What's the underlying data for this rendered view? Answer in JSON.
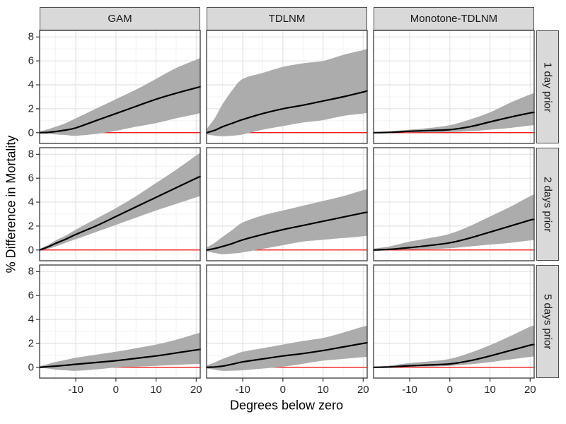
{
  "chart_data": {
    "type": "line",
    "description": "Faceted line chart with confidence ribbons: % difference in mortality vs degrees below zero, by model (columns) and lag (rows)",
    "xlabel": "Degrees below zero",
    "ylabel": "% Difference in Mortality",
    "col_facets": [
      "GAM",
      "TDLNM",
      "Monotone-TDLNM"
    ],
    "row_facets": [
      "1 day prior",
      "2 days prior",
      "5 days prior"
    ],
    "x_ticks": [
      -10,
      0,
      10,
      20
    ],
    "y_ticks": [
      0,
      2,
      4,
      6,
      8
    ],
    "x_minor_ticks": [
      -15,
      -5,
      5,
      15
    ],
    "y_minor_ticks": [
      1,
      3,
      5,
      7
    ],
    "x_range": [
      -19,
      21
    ],
    "y_range": [
      -0.9,
      8.55
    ],
    "grid": true,
    "legend": "none",
    "reference_line_y": 0,
    "x": [
      -19,
      -17,
      -15,
      -12.5,
      -10,
      -5,
      0,
      5,
      10,
      15,
      20,
      21
    ],
    "panels": [
      {
        "row": "1 day prior",
        "col": "GAM",
        "mean": [
          0,
          0.03,
          0.1,
          0.22,
          0.4,
          1.0,
          1.6,
          2.2,
          2.8,
          3.3,
          3.75,
          3.85
        ],
        "lower": [
          -0.05,
          -0.1,
          -0.15,
          -0.2,
          -0.25,
          -0.1,
          0.15,
          0.5,
          0.8,
          1.2,
          1.55,
          1.65
        ],
        "upper": [
          0.1,
          0.28,
          0.5,
          0.8,
          1.2,
          2.0,
          2.8,
          3.6,
          4.5,
          5.4,
          6.1,
          6.25
        ]
      },
      {
        "row": "1 day prior",
        "col": "TDLNM",
        "mean": [
          0,
          0.2,
          0.5,
          0.8,
          1.1,
          1.6,
          2.0,
          2.3,
          2.65,
          3.0,
          3.4,
          3.5
        ],
        "lower": [
          -0.15,
          -0.25,
          -0.3,
          -0.25,
          -0.15,
          0.25,
          0.55,
          0.85,
          1.05,
          1.4,
          1.6,
          1.65
        ],
        "upper": [
          0.3,
          1.2,
          2.4,
          3.6,
          4.5,
          5.0,
          5.5,
          5.8,
          6.0,
          6.5,
          6.9,
          7.0
        ]
      },
      {
        "row": "1 day prior",
        "col": "Monotone-TDLNM",
        "mean": [
          0,
          0.01,
          0.03,
          0.07,
          0.12,
          0.18,
          0.25,
          0.5,
          0.9,
          1.3,
          1.65,
          1.7
        ],
        "lower": [
          0,
          0,
          0.01,
          0.01,
          0.02,
          0.03,
          0.05,
          0.12,
          0.25,
          0.4,
          0.6,
          0.63
        ],
        "upper": [
          0.03,
          0.07,
          0.12,
          0.18,
          0.25,
          0.4,
          0.63,
          1.1,
          1.7,
          2.5,
          3.2,
          3.3
        ]
      },
      {
        "row": "2 days prior",
        "col": "GAM",
        "mean": [
          0,
          0.25,
          0.55,
          0.9,
          1.3,
          2.0,
          2.8,
          3.6,
          4.4,
          5.2,
          6.0,
          6.15
        ],
        "lower": [
          -0.05,
          0.1,
          0.3,
          0.6,
          0.9,
          1.5,
          2.1,
          2.7,
          3.3,
          3.85,
          4.4,
          4.5
        ],
        "upper": [
          0.1,
          0.4,
          0.8,
          1.2,
          1.7,
          2.6,
          3.5,
          4.5,
          5.6,
          6.7,
          7.9,
          8.1
        ]
      },
      {
        "row": "2 days prior",
        "col": "TDLNM",
        "mean": [
          0,
          0.12,
          0.3,
          0.55,
          0.85,
          1.3,
          1.7,
          2.05,
          2.4,
          2.75,
          3.1,
          3.15
        ],
        "lower": [
          -0.1,
          -0.25,
          -0.35,
          -0.3,
          -0.2,
          0.1,
          0.4,
          0.7,
          0.85,
          1.0,
          1.15,
          1.2
        ],
        "upper": [
          0.2,
          0.6,
          1.1,
          1.7,
          2.3,
          2.9,
          3.3,
          3.7,
          4.1,
          4.5,
          5.0,
          5.05
        ]
      },
      {
        "row": "2 days prior",
        "col": "Monotone-TDLNM",
        "mean": [
          0,
          0.02,
          0.05,
          0.12,
          0.2,
          0.38,
          0.6,
          1.0,
          1.5,
          2.0,
          2.5,
          2.55
        ],
        "lower": [
          0,
          0,
          0.01,
          0.02,
          0.04,
          0.08,
          0.15,
          0.3,
          0.45,
          0.6,
          0.8,
          0.82
        ],
        "upper": [
          0.1,
          0.2,
          0.3,
          0.5,
          0.7,
          1.0,
          1.35,
          2.0,
          2.8,
          3.6,
          4.5,
          4.6
        ]
      },
      {
        "row": "5 days prior",
        "col": "GAM",
        "mean": [
          0,
          0.05,
          0.1,
          0.17,
          0.25,
          0.4,
          0.55,
          0.75,
          0.95,
          1.2,
          1.45,
          1.5
        ],
        "lower": [
          -0.03,
          -0.1,
          -0.2,
          -0.25,
          -0.3,
          -0.18,
          -0.02,
          0.05,
          0.12,
          0.2,
          0.28,
          0.3
        ],
        "upper": [
          0.1,
          0.27,
          0.45,
          0.62,
          0.8,
          1.05,
          1.3,
          1.6,
          1.9,
          2.3,
          2.8,
          2.9
        ]
      },
      {
        "row": "5 days prior",
        "col": "TDLNM",
        "mean": [
          0,
          0.03,
          0.1,
          0.27,
          0.45,
          0.7,
          0.95,
          1.15,
          1.4,
          1.7,
          2.0,
          2.05
        ],
        "lower": [
          -0.1,
          -0.2,
          -0.3,
          -0.28,
          -0.25,
          -0.1,
          0.05,
          0.3,
          0.55,
          0.7,
          0.85,
          0.88
        ],
        "upper": [
          0.15,
          0.4,
          0.7,
          1.0,
          1.3,
          1.6,
          1.9,
          2.2,
          2.45,
          2.9,
          3.4,
          3.45
        ]
      },
      {
        "row": "5 days prior",
        "col": "Monotone-TDLNM",
        "mean": [
          0,
          0.01,
          0.03,
          0.08,
          0.13,
          0.2,
          0.28,
          0.55,
          0.95,
          1.4,
          1.85,
          1.9
        ],
        "lower": [
          0,
          0,
          0.01,
          0.02,
          0.03,
          0.07,
          0.12,
          0.25,
          0.43,
          0.65,
          0.87,
          0.9
        ],
        "upper": [
          0.03,
          0.08,
          0.15,
          0.25,
          0.35,
          0.5,
          0.7,
          1.2,
          1.85,
          2.6,
          3.4,
          3.45
        ]
      }
    ]
  },
  "colors": {
    "ribbon": "#acacac",
    "mean_line": "#000000",
    "reference_line": "#f80000",
    "strip_bg": "#d9d9d9",
    "strip_border": "#4d4d4d",
    "panel_border": "#474747",
    "panel_bg": "#ffffff",
    "grid_major": "#e3e3e3",
    "grid_minor": "#f0f0f0",
    "tick_mark": "#333333",
    "tick_text": "#262626"
  }
}
